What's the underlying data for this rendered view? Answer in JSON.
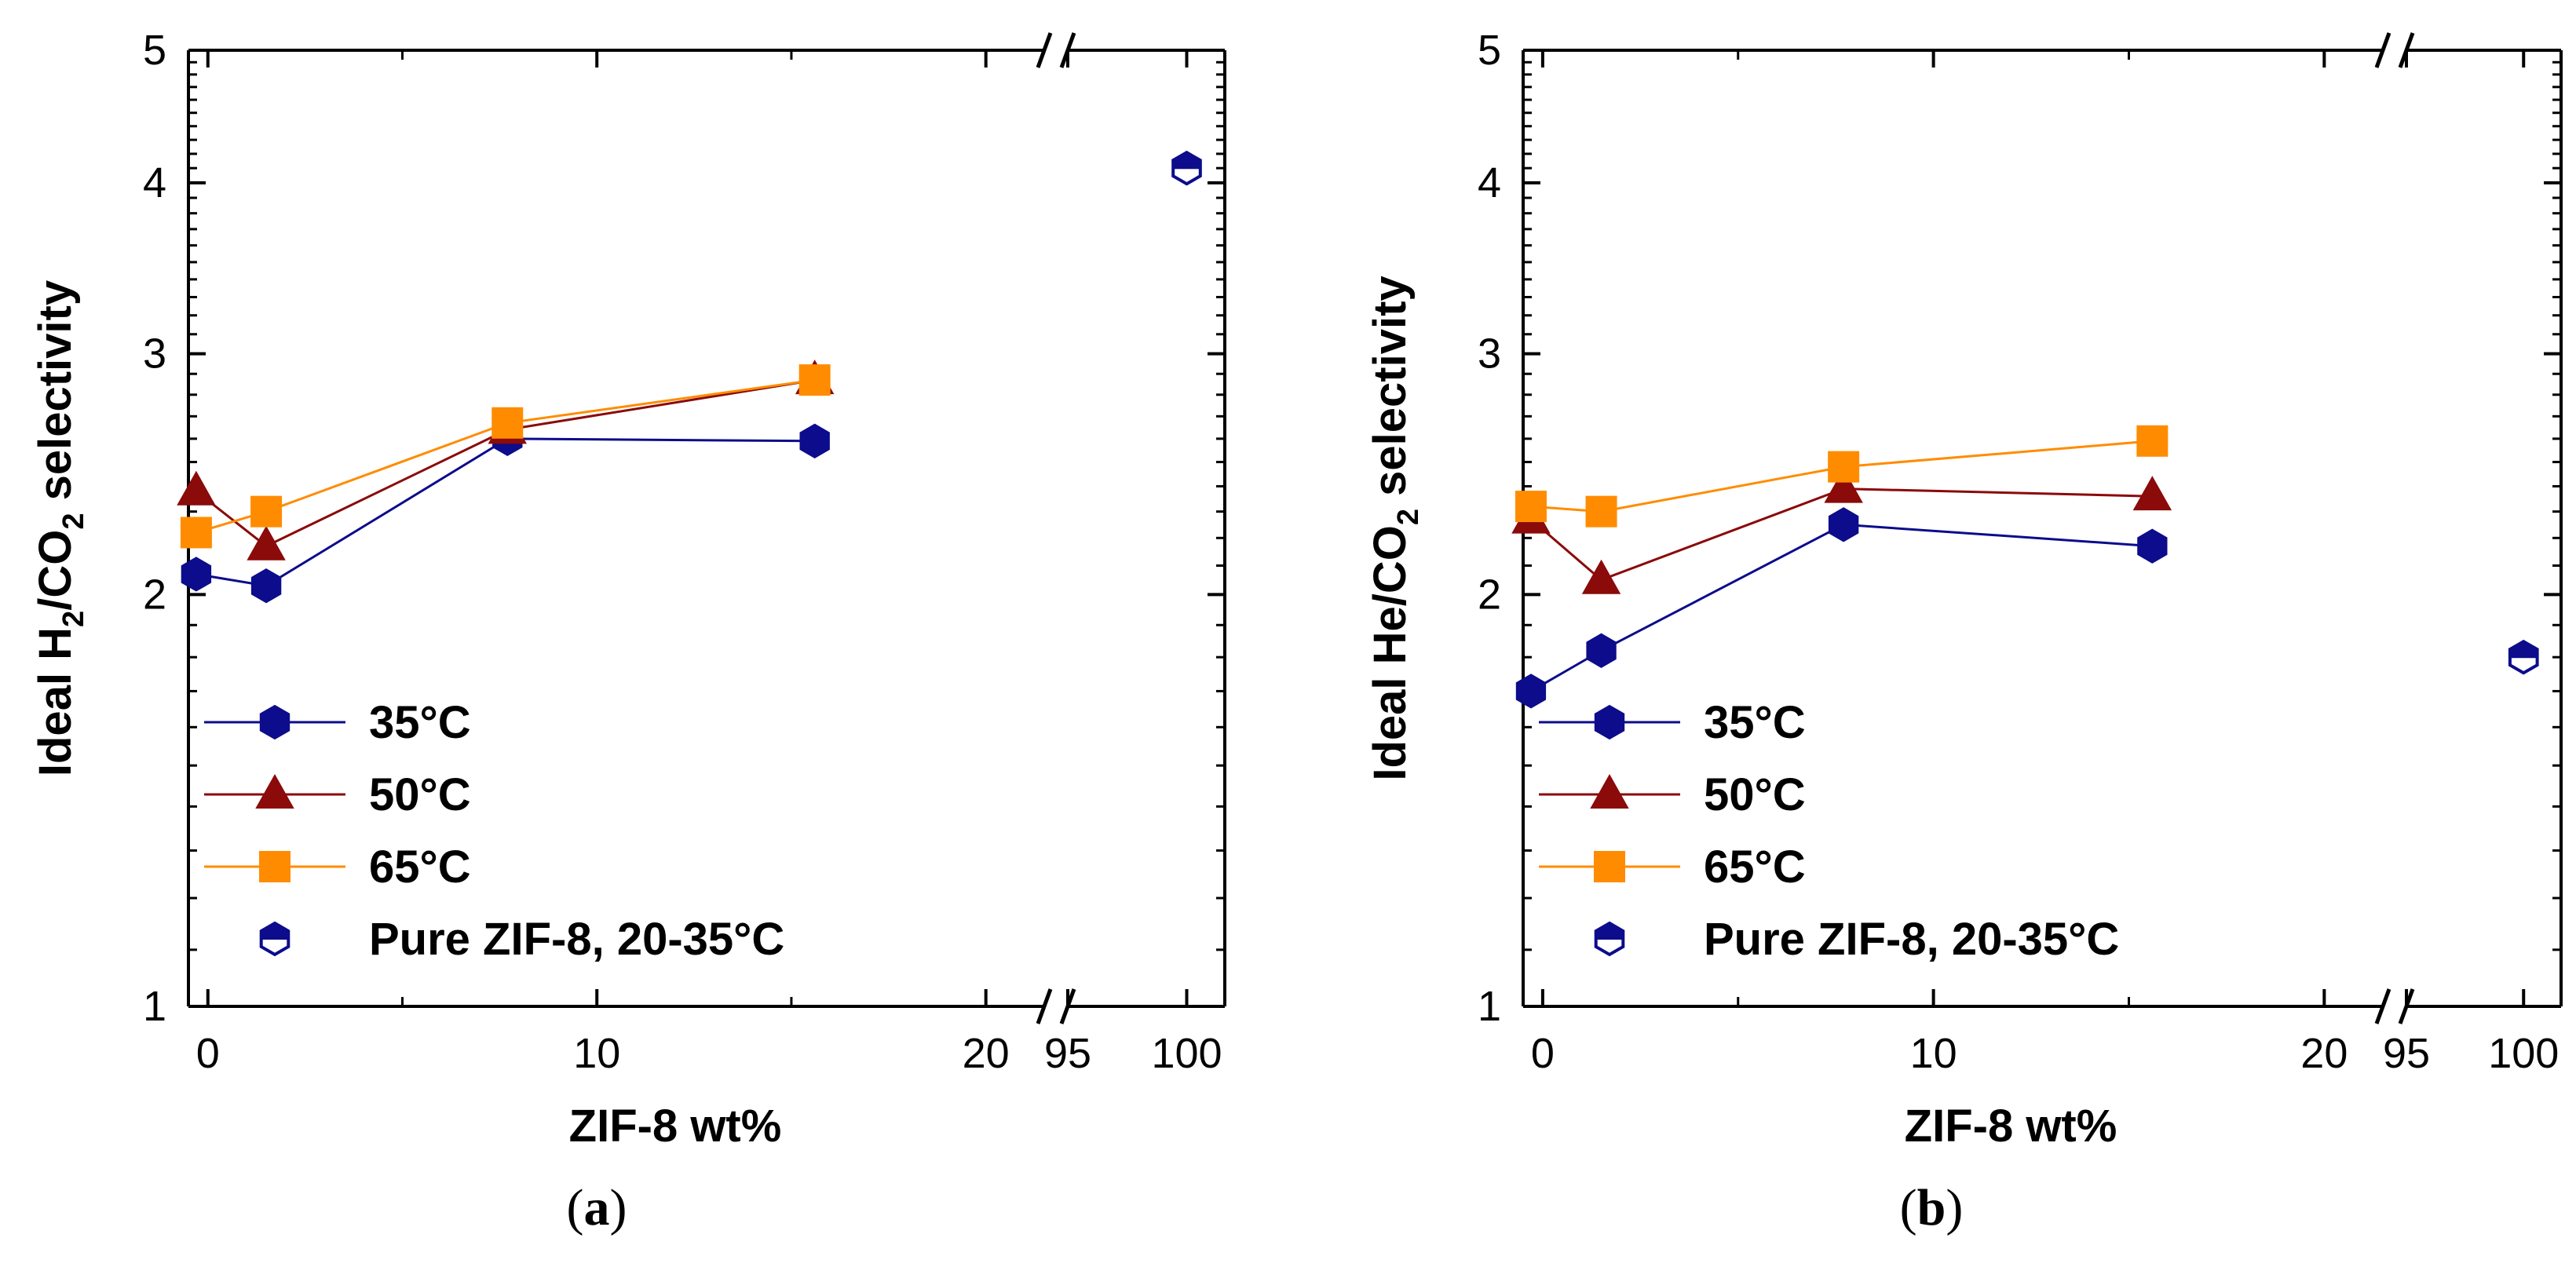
{
  "colors": {
    "35C": "#0c0c8c",
    "50C": "#8b0a0a",
    "65C": "#ff8c00",
    "pure": "#0c0c8c",
    "axis": "#000000"
  },
  "chart_data": [
    {
      "type": "line",
      "panel": "a",
      "caption_open": "(",
      "caption_letter": "a",
      "caption_close": ")",
      "xlabel": "ZIF-8 wt%",
      "ylabel_parts": [
        "Ideal H",
        "2",
        "/CO",
        "2",
        " selectivity"
      ],
      "yscale": "log",
      "ylim": [
        1,
        5
      ],
      "yticks": [
        1,
        2,
        3,
        4,
        5
      ],
      "ytick_labels": [
        "1",
        "2",
        "3",
        "4",
        "5"
      ],
      "xlim": [
        -0.5,
        101.6
      ],
      "xbreak": [
        21.5,
        95
      ],
      "xticks": [
        0,
        10,
        20,
        95,
        100
      ],
      "xtick_labels": [
        "0",
        "10",
        "20",
        "95",
        "100"
      ],
      "legend": {
        "location": "lower-left",
        "entries": [
          {
            "key": "35C",
            "label": "35°C",
            "marker": "hexagon"
          },
          {
            "key": "50C",
            "label": "50°C",
            "marker": "triangle"
          },
          {
            "key": "65C",
            "label": "65°C",
            "marker": "square"
          },
          {
            "key": "pure",
            "label": "Pure ZIF-8, 20-35°C",
            "marker": "half-hexagon"
          }
        ]
      },
      "series": [
        {
          "name": "35°C",
          "key": "35C",
          "marker": "hexagon",
          "x": [
            -0.3,
            1.5,
            7.7,
            15.6
          ],
          "y": [
            2.07,
            2.03,
            2.6,
            2.59
          ]
        },
        {
          "name": "50°C",
          "key": "50C",
          "marker": "triangle",
          "x": [
            -0.3,
            1.5,
            7.7,
            15.6
          ],
          "y": [
            2.38,
            2.17,
            2.64,
            2.87
          ]
        },
        {
          "name": "65°C",
          "key": "65C",
          "marker": "square",
          "x": [
            -0.3,
            1.5,
            7.7,
            15.6
          ],
          "y": [
            2.22,
            2.3,
            2.67,
            2.87
          ]
        },
        {
          "name": "Pure ZIF-8, 20-35°C",
          "key": "pure",
          "marker": "half-hexagon",
          "x": [
            100
          ],
          "y": [
            4.1
          ]
        }
      ]
    },
    {
      "type": "line",
      "panel": "b",
      "caption_open": "(",
      "caption_letter": "b",
      "caption_close": ")",
      "xlabel": "ZIF-8 wt%",
      "ylabel_parts": [
        "Ideal He/CO",
        "2",
        " selectivity"
      ],
      "yscale": "log",
      "ylim": [
        1,
        5
      ],
      "yticks": [
        1,
        2,
        3,
        4,
        5
      ],
      "ytick_labels": [
        "1",
        "2",
        "3",
        "4",
        "5"
      ],
      "xlim": [
        -0.5,
        101.6
      ],
      "xbreak": [
        21.5,
        95
      ],
      "xticks": [
        0,
        10,
        20,
        95,
        100
      ],
      "xtick_labels": [
        "0",
        "10",
        "20",
        "95",
        "100"
      ],
      "legend": {
        "location": "lower-left",
        "entries": [
          {
            "key": "35C",
            "label": "35°C",
            "marker": "hexagon"
          },
          {
            "key": "50C",
            "label": "50°C",
            "marker": "triangle"
          },
          {
            "key": "65C",
            "label": "65°C",
            "marker": "square"
          },
          {
            "key": "pure",
            "label": "Pure ZIF-8, 20-35°C",
            "marker": "half-hexagon"
          }
        ]
      },
      "series": [
        {
          "name": "35°C",
          "key": "35C",
          "marker": "hexagon",
          "x": [
            -0.3,
            1.5,
            7.7,
            15.6
          ],
          "y": [
            1.7,
            1.82,
            2.25,
            2.17
          ]
        },
        {
          "name": "50°C",
          "key": "50C",
          "marker": "triangle",
          "x": [
            -0.3,
            1.5,
            7.7,
            15.6
          ],
          "y": [
            2.27,
            2.05,
            2.39,
            2.36
          ]
        },
        {
          "name": "65°C",
          "key": "65C",
          "marker": "square",
          "x": [
            -0.3,
            1.5,
            7.7,
            15.6
          ],
          "y": [
            2.32,
            2.3,
            2.48,
            2.59
          ]
        },
        {
          "name": "Pure ZIF-8, 20-35°C",
          "key": "pure",
          "marker": "half-hexagon",
          "x": [
            100
          ],
          "y": [
            1.8
          ]
        }
      ]
    }
  ]
}
